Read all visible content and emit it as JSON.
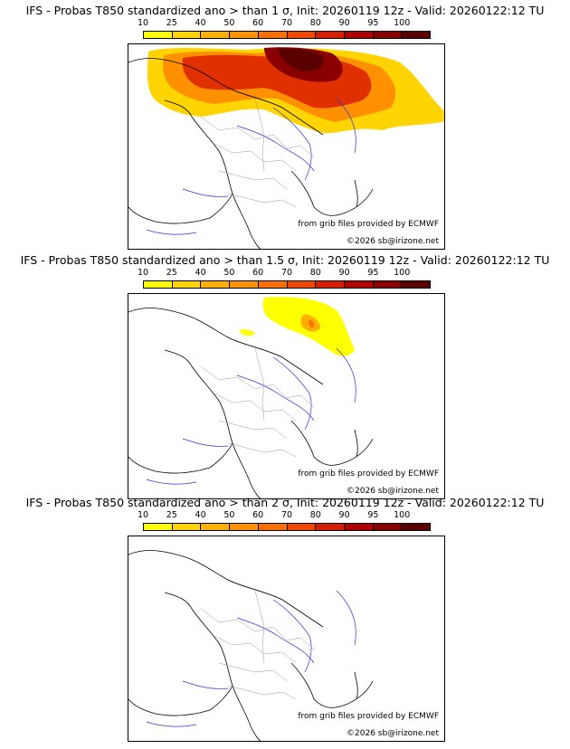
{
  "colorbar": {
    "ticks": [
      "10",
      "25",
      "40",
      "50",
      "60",
      "70",
      "80",
      "90",
      "95",
      "100"
    ],
    "colors": [
      "#ffff00",
      "#ffd400",
      "#ffb000",
      "#ff9000",
      "#ff6e00",
      "#f04800",
      "#d61e00",
      "#b00000",
      "#8a0000",
      "#5a0000"
    ]
  },
  "colors": {
    "coast": "#000000",
    "rivers": "#3030e0",
    "borders": "#999999"
  },
  "credits": {
    "source": "from grib files provided by ECMWF",
    "copyright": "©2026 sb@irizone.net"
  },
  "panels": [
    {
      "title": "IFS - Probas T850  standardized ano > than 1 σ, Init: 20260119 12z - Valid: 20260122:12 TU",
      "threshold": "1 σ"
    },
    {
      "title": "IFS - Probas T850  standardized ano > than 1.5 σ, Init: 20260119 12z - Valid: 20260122:12 TU",
      "threshold": "1.5 σ"
    },
    {
      "title": "IFS - Probas T850  standardized ano > than 2 σ, Init: 20260119 12z - Valid: 20260122:12 TU",
      "threshold": "2 σ"
    }
  ]
}
